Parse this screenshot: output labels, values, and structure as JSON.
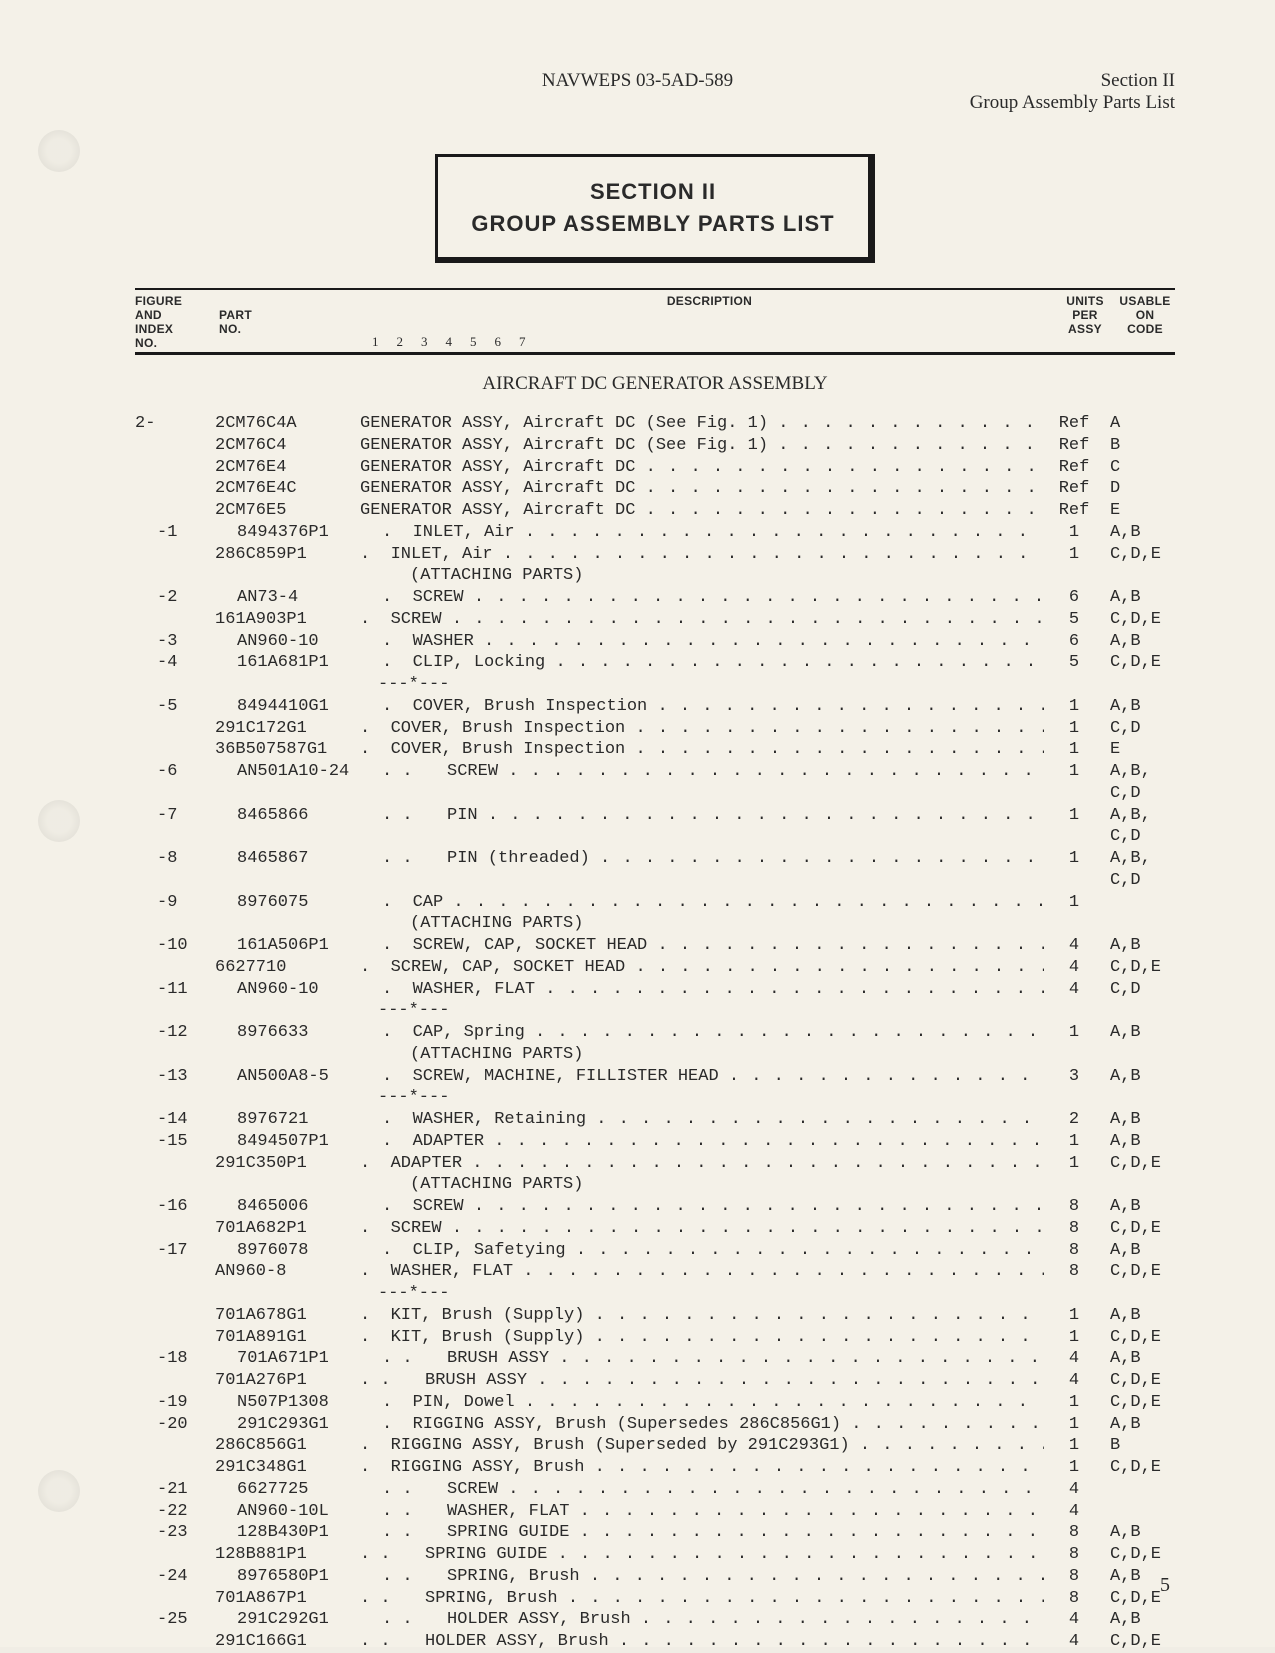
{
  "header": {
    "doc_number": "NAVWEPS 03-5AD-589",
    "section": "Section II",
    "subtitle": "Group Assembly Parts List"
  },
  "section_box": {
    "line1": "SECTION II",
    "line2": "GROUP ASSEMBLY PARTS LIST"
  },
  "columns": {
    "fig": "FIGURE\nAND\nINDEX\nNO.",
    "part": "PART\nNO.",
    "desc": "DESCRIPTION",
    "numbers": "1  2  3  4  5  6  7",
    "units": "UNITS\nPER\nASSY",
    "code": "USABLE\nON\nCODE"
  },
  "assembly_title": "AIRCRAFT DC GENERATOR ASSEMBLY",
  "rows": [
    {
      "fig": "2-",
      "part": "2CM76C4A",
      "indent": 0,
      "desc": "GENERATOR ASSY, Aircraft DC (See Fig. 1)",
      "dots": true,
      "units": "Ref",
      "code": "A"
    },
    {
      "fig": "",
      "part": "2CM76C4",
      "indent": 0,
      "desc": "GENERATOR ASSY, Aircraft DC (See Fig. 1)",
      "dots": true,
      "units": "Ref",
      "code": "B"
    },
    {
      "fig": "",
      "part": "2CM76E4",
      "indent": 0,
      "desc": "GENERATOR ASSY, Aircraft DC",
      "dots": true,
      "units": "Ref",
      "code": "C"
    },
    {
      "fig": "",
      "part": "2CM76E4C",
      "indent": 0,
      "desc": "GENERATOR ASSY, Aircraft DC",
      "dots": true,
      "units": "Ref",
      "code": "D"
    },
    {
      "fig": "",
      "part": "2CM76E5",
      "indent": 0,
      "desc": "GENERATOR ASSY, Aircraft DC",
      "dots": true,
      "units": "Ref",
      "code": "E"
    },
    {
      "fig": "-1",
      "part": "8494376P1",
      "indent": 1,
      "pre": ".",
      "desc": "INLET, Air",
      "dots": true,
      "units": "1",
      "code": "A,B"
    },
    {
      "fig": "",
      "part": "286C859P1",
      "indent": 1,
      "pre": ".",
      "desc": "INLET, Air",
      "dots": true,
      "units": "1",
      "code": "C,D,E"
    },
    {
      "fig": "",
      "part": "",
      "indent": 0,
      "note": "(ATTACHING PARTS)"
    },
    {
      "fig": "-2",
      "part": "AN73-4",
      "indent": 1,
      "pre": ".",
      "desc": "SCREW",
      "dots": true,
      "units": "6",
      "code": "A,B"
    },
    {
      "fig": "",
      "part": "161A903P1",
      "indent": 1,
      "pre": ".",
      "desc": "SCREW",
      "dots": true,
      "units": "5",
      "code": "C,D,E"
    },
    {
      "fig": "-3",
      "part": "AN960-10",
      "indent": 1,
      "pre": ".",
      "desc": "WASHER",
      "dots": true,
      "units": "6",
      "code": "A,B"
    },
    {
      "fig": "-4",
      "part": "161A681P1",
      "indent": 1,
      "pre": ".",
      "desc": "CLIP, Locking",
      "dots": true,
      "units": "5",
      "code": "C,D,E"
    },
    {
      "fig": "",
      "part": "",
      "sep": "---*---"
    },
    {
      "fig": "-5",
      "part": "8494410G1",
      "indent": 1,
      "pre": ".",
      "desc": "COVER, Brush Inspection",
      "dots": true,
      "units": "1",
      "code": "A,B"
    },
    {
      "fig": "",
      "part": "291C172G1",
      "indent": 1,
      "pre": ".",
      "desc": "COVER, Brush Inspection",
      "dots": true,
      "units": "1",
      "code": "C,D"
    },
    {
      "fig": "",
      "part": "36B507587G1",
      "indent": 1,
      "pre": ".",
      "desc": "COVER, Brush Inspection",
      "dots": true,
      "units": "1",
      "code": "E"
    },
    {
      "fig": "-6",
      "part": "AN501A10-24",
      "indent": 2,
      "pre": ".  .",
      "desc": "SCREW",
      "dots": true,
      "units": "1",
      "code": "A,B,"
    },
    {
      "fig": "",
      "part": "",
      "indent": 0,
      "contcode": "C,D"
    },
    {
      "fig": "-7",
      "part": "8465866",
      "indent": 2,
      "pre": ".  .",
      "desc": "PIN",
      "dots": true,
      "units": "1",
      "code": "A,B,"
    },
    {
      "fig": "",
      "part": "",
      "indent": 0,
      "contcode": "C,D"
    },
    {
      "fig": "-8",
      "part": "8465867",
      "indent": 2,
      "pre": ".  .",
      "desc": "PIN (threaded)",
      "dots": true,
      "units": "1",
      "code": "A,B,"
    },
    {
      "fig": "",
      "part": "",
      "indent": 0,
      "contcode": "C,D"
    },
    {
      "fig": "-9",
      "part": "8976075",
      "indent": 1,
      "pre": ".",
      "desc": "CAP",
      "dots": true,
      "units": "1",
      "code": ""
    },
    {
      "fig": "",
      "part": "",
      "indent": 0,
      "note": "(ATTACHING PARTS)"
    },
    {
      "fig": "-10",
      "part": "161A506P1",
      "indent": 1,
      "pre": ".",
      "desc": "SCREW, CAP, SOCKET HEAD",
      "dots": true,
      "units": "4",
      "code": "A,B"
    },
    {
      "fig": "",
      "part": "6627710",
      "indent": 1,
      "pre": ".",
      "desc": "SCREW, CAP, SOCKET HEAD",
      "dots": true,
      "units": "4",
      "code": "C,D,E"
    },
    {
      "fig": "-11",
      "part": "AN960-10",
      "indent": 1,
      "pre": ".",
      "desc": "WASHER, FLAT",
      "dots": true,
      "units": "4",
      "code": "C,D"
    },
    {
      "fig": "",
      "part": "",
      "sep": "---*---"
    },
    {
      "fig": "-12",
      "part": "8976633",
      "indent": 1,
      "pre": ".",
      "desc": "CAP, Spring",
      "dots": true,
      "units": "1",
      "code": "A,B"
    },
    {
      "fig": "",
      "part": "",
      "indent": 0,
      "note": "(ATTACHING PARTS)"
    },
    {
      "fig": "-13",
      "part": "AN500A8-5",
      "indent": 1,
      "pre": ".",
      "desc": "SCREW, MACHINE, FILLISTER HEAD",
      "dots": true,
      "units": "3",
      "code": "A,B"
    },
    {
      "fig": "",
      "part": "",
      "sep": "---*---"
    },
    {
      "fig": "-14",
      "part": "8976721",
      "indent": 1,
      "pre": ".",
      "desc": "WASHER, Retaining",
      "dots": true,
      "units": "2",
      "code": "A,B"
    },
    {
      "fig": "-15",
      "part": "8494507P1",
      "indent": 1,
      "pre": ".",
      "desc": "ADAPTER",
      "dots": true,
      "units": "1",
      "code": "A,B"
    },
    {
      "fig": "",
      "part": "291C350P1",
      "indent": 1,
      "pre": ".",
      "desc": "ADAPTER",
      "dots": true,
      "units": "1",
      "code": "C,D,E"
    },
    {
      "fig": "",
      "part": "",
      "indent": 0,
      "note": "(ATTACHING PARTS)"
    },
    {
      "fig": "-16",
      "part": "8465006",
      "indent": 1,
      "pre": ".",
      "desc": "SCREW",
      "dots": true,
      "units": "8",
      "code": "A,B"
    },
    {
      "fig": "",
      "part": "701A682P1",
      "indent": 1,
      "pre": ".",
      "desc": "SCREW",
      "dots": true,
      "units": "8",
      "code": "C,D,E"
    },
    {
      "fig": "-17",
      "part": "8976078",
      "indent": 1,
      "pre": ".",
      "desc": "CLIP, Safetying",
      "dots": true,
      "units": "8",
      "code": "A,B"
    },
    {
      "fig": "",
      "part": "AN960-8",
      "indent": 1,
      "pre": ".",
      "desc": "WASHER, FLAT",
      "dots": true,
      "units": "8",
      "code": "C,D,E"
    },
    {
      "fig": "",
      "part": "",
      "sep": "---*---"
    },
    {
      "fig": "",
      "part": "701A678G1",
      "indent": 1,
      "pre": ".",
      "desc": "KIT, Brush (Supply)",
      "dots": true,
      "units": "1",
      "code": "A,B"
    },
    {
      "fig": "",
      "part": "701A891G1",
      "indent": 1,
      "pre": ".",
      "desc": "KIT, Brush (Supply)",
      "dots": true,
      "units": "1",
      "code": "C,D,E"
    },
    {
      "fig": "-18",
      "part": "701A671P1",
      "indent": 2,
      "pre": ".  .",
      "desc": "BRUSH ASSY",
      "dots": true,
      "units": "4",
      "code": "A,B"
    },
    {
      "fig": "",
      "part": "701A276P1",
      "indent": 2,
      "pre": ".  .",
      "desc": "BRUSH ASSY",
      "dots": true,
      "units": "4",
      "code": "C,D,E"
    },
    {
      "fig": "-19",
      "part": "N507P1308",
      "indent": 1,
      "pre": ".",
      "desc": "PIN, Dowel",
      "dots": true,
      "units": "1",
      "code": "C,D,E"
    },
    {
      "fig": "-20",
      "part": "291C293G1",
      "indent": 1,
      "pre": ".",
      "desc": "RIGGING ASSY, Brush (Supersedes 286C856G1)",
      "dots": true,
      "units": "1",
      "code": "A,B"
    },
    {
      "fig": "",
      "part": "286C856G1",
      "indent": 1,
      "pre": ".",
      "desc": "RIGGING ASSY, Brush (Superseded by 291C293G1)",
      "dots": true,
      "units": "1",
      "code": "B"
    },
    {
      "fig": "",
      "part": "291C348G1",
      "indent": 1,
      "pre": ".",
      "desc": "RIGGING ASSY, Brush",
      "dots": true,
      "units": "1",
      "code": "C,D,E"
    },
    {
      "fig": "-21",
      "part": "6627725",
      "indent": 2,
      "pre": ".  .",
      "desc": "SCREW",
      "dots": true,
      "units": "4",
      "code": ""
    },
    {
      "fig": "-22",
      "part": "AN960-10L",
      "indent": 2,
      "pre": ".  .",
      "desc": "WASHER, FLAT",
      "dots": true,
      "units": "4",
      "code": ""
    },
    {
      "fig": "-23",
      "part": "128B430P1",
      "indent": 2,
      "pre": ".  .",
      "desc": "SPRING GUIDE",
      "dots": true,
      "units": "8",
      "code": "A,B"
    },
    {
      "fig": "",
      "part": "128B881P1",
      "indent": 2,
      "pre": ".  .",
      "desc": "SPRING GUIDE",
      "dots": true,
      "units": "8",
      "code": "C,D,E"
    },
    {
      "fig": "-24",
      "part": "8976580P1",
      "indent": 2,
      "pre": ".  .",
      "desc": "SPRING, Brush",
      "dots": true,
      "units": "8",
      "code": "A,B"
    },
    {
      "fig": "",
      "part": "701A867P1",
      "indent": 2,
      "pre": ".  .",
      "desc": "SPRING, Brush",
      "dots": true,
      "units": "8",
      "code": "C,D,E"
    },
    {
      "fig": "-25",
      "part": "291C292G1",
      "indent": 2,
      "pre": ".  .",
      "desc": "HOLDER ASSY, Brush",
      "dots": true,
      "units": "4",
      "code": "A,B"
    },
    {
      "fig": "",
      "part": "291C166G1",
      "indent": 2,
      "pre": ".  .",
      "desc": "HOLDER ASSY, Brush",
      "dots": true,
      "units": "4",
      "code": "C,D,E"
    }
  ],
  "page_number": "5"
}
